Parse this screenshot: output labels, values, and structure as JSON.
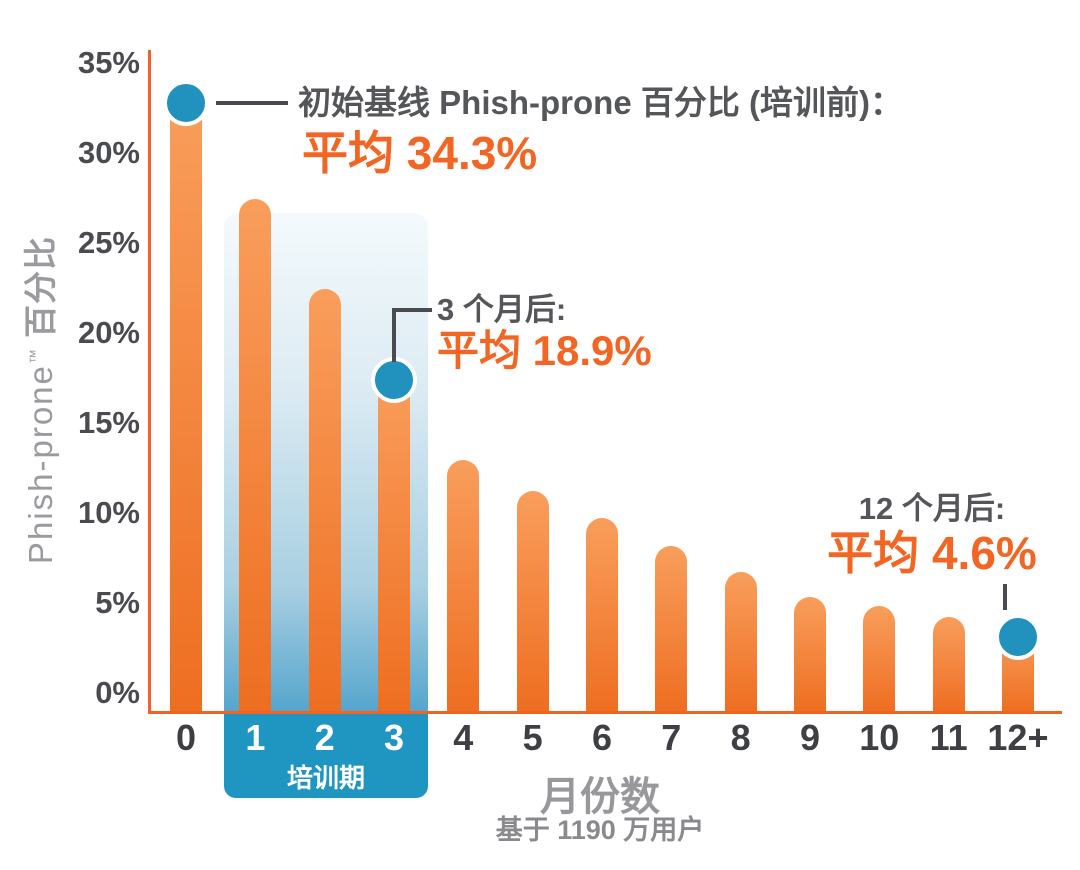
{
  "chart_data": {
    "type": "bar",
    "title": "",
    "categories": [
      "0",
      "1",
      "2",
      "3",
      "4",
      "5",
      "6",
      "7",
      "8",
      "9",
      "10",
      "11",
      "12+"
    ],
    "values": [
      34.3,
      28.5,
      23.5,
      18.9,
      14.0,
      12.3,
      10.8,
      9.2,
      7.8,
      6.4,
      5.9,
      5.3,
      4.6
    ],
    "y_ticks": [
      35,
      30,
      25,
      20,
      15,
      10,
      5,
      0
    ],
    "y_tick_suffix": "%",
    "ylim": [
      0,
      35
    ],
    "grid": false,
    "xlabel": "月份数",
    "xlabel_note": "基于 1190 万用户",
    "ylabel": {
      "latin": "Phish-prone",
      "tm": "™",
      "zh": " 百分比"
    },
    "highlight": {
      "label": "培训期",
      "from_month": 1,
      "to_month": 3
    },
    "dots": [
      {
        "month_index": 0,
        "value": 34.3
      },
      {
        "month_index": 3,
        "value": 18.9
      },
      {
        "month_index": 12,
        "value": 4.6
      }
    ],
    "annotations": {
      "baseline": {
        "line1": "初始基线 Phish-prone 百分比 (培训前)：",
        "line2": "平均 34.3%"
      },
      "after3": {
        "line1": "3 个月后:",
        "line2": "平均 18.9%"
      },
      "after12": {
        "line1": "12 个月后:",
        "line2": "平均 4.6%"
      }
    },
    "colors": {
      "axis_orange": "#F26227",
      "bar_gradient_top": "#F99E5C",
      "bar_gradient_bottom": "#EE6E21",
      "accent_orange": "#F26522",
      "dot_blue": "#2191BE",
      "training_box_blue": "#1F95C2",
      "band_gradient_top": "#F4FAFC",
      "band_gradient_bottom": "#55A5CD",
      "tick_text": "#4A4B50",
      "annotation_gray": "#55565A",
      "muted_gray": "#9B9B9F"
    }
  }
}
